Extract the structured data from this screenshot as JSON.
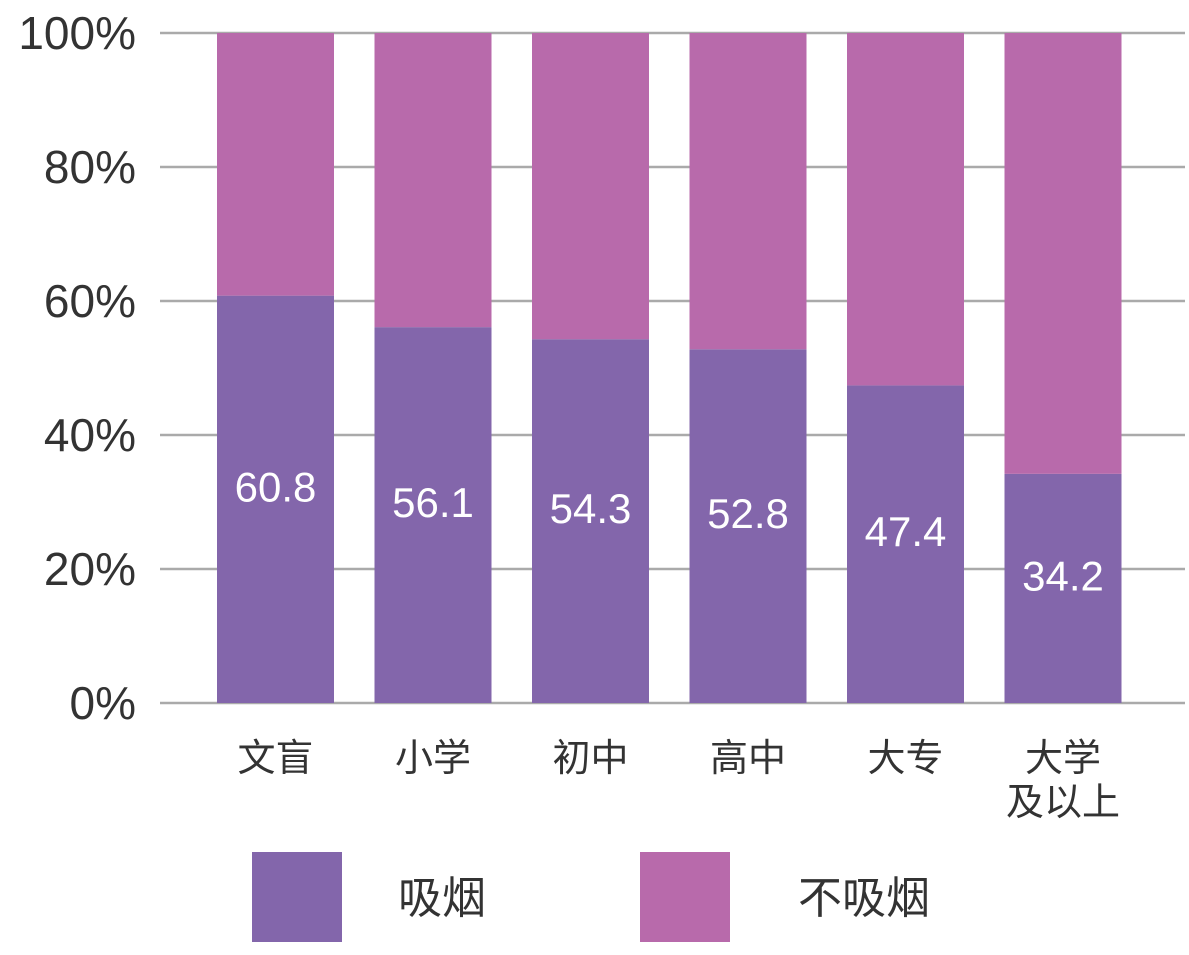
{
  "chart_data": {
    "type": "bar",
    "stacked": true,
    "percent": true,
    "categories": [
      [
        "文盲"
      ],
      [
        "小学"
      ],
      [
        "初中"
      ],
      [
        "高中"
      ],
      [
        "大专"
      ],
      [
        "大学",
        "及以上"
      ]
    ],
    "series": [
      {
        "name": "吸烟",
        "values": [
          60.8,
          56.1,
          54.3,
          52.8,
          47.4,
          34.2
        ],
        "color": "#8366ab"
      },
      {
        "name": "不吸烟",
        "values": [
          39.2,
          43.9,
          45.7,
          47.2,
          52.6,
          65.8
        ],
        "color": "#b86aab"
      }
    ],
    "data_labels": [
      "60.8",
      "56.1",
      "54.3",
      "52.8",
      "47.4",
      "34.2"
    ],
    "y_ticks": [
      "0%",
      "20%",
      "40%",
      "60%",
      "80%",
      "100%"
    ],
    "ylim": [
      0,
      100
    ],
    "grid": true,
    "legend": "bottom",
    "colors": {
      "grid": "#aaaaaa",
      "text": "#333333",
      "label": "#ffffff"
    }
  }
}
